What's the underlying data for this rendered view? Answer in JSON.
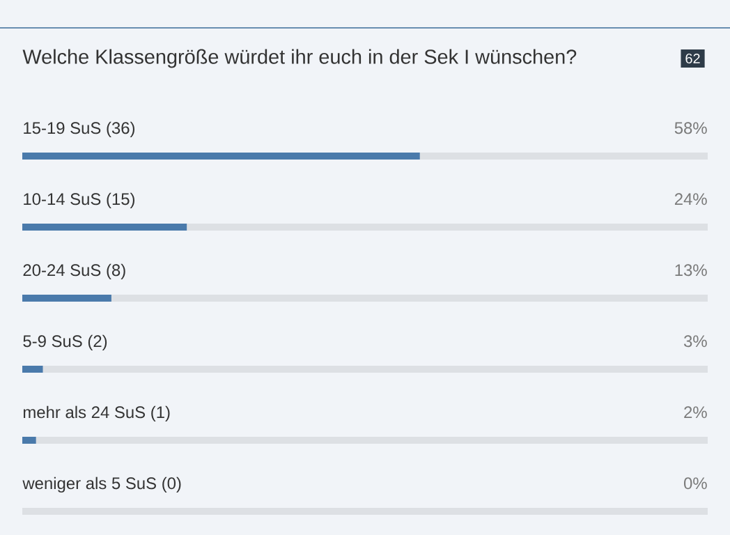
{
  "chart_data": {
    "type": "bar",
    "orientation": "horizontal",
    "title": "Welche Klassengröße würdet ihr euch in der Sek I wünschen?",
    "annotations": [
      "62"
    ],
    "categories": [
      "15-19 SuS (36)",
      "10-14 SuS (15)",
      "20-24 SuS (8)",
      "5-9 SuS (2)",
      "mehr als 24 SuS (1)",
      "weniger als 5 SuS (0)"
    ],
    "values": [
      58,
      24,
      13,
      3,
      2,
      0
    ],
    "value_labels": [
      "58%",
      "24%",
      "13%",
      "3%",
      "2%",
      "0%"
    ],
    "color": "#4a7aab",
    "xlim": [
      0,
      100
    ]
  }
}
